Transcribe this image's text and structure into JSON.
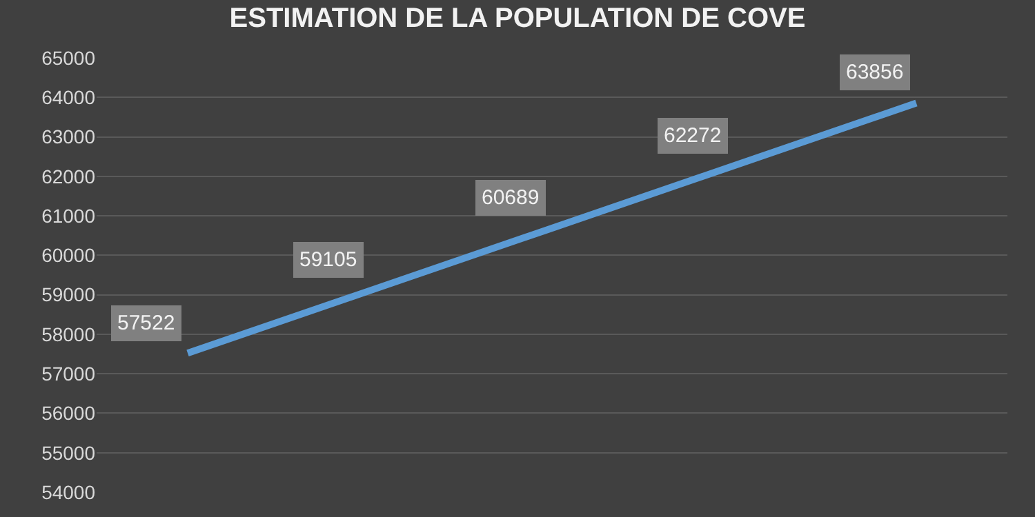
{
  "chart_data": {
    "type": "line",
    "title": "ESTIMATION DE LA POPULATION DE COVE",
    "categories": [
      null,
      null,
      null,
      null,
      null
    ],
    "series": [
      {
        "color": "#5b9bd5",
        "values": [
          57522,
          59105,
          60689,
          62272,
          63856
        ]
      }
    ],
    "ylim": [
      54000,
      65000
    ],
    "yticks": [
      54000,
      55000,
      56000,
      57000,
      58000,
      59000,
      60000,
      61000,
      62000,
      63000,
      64000,
      65000
    ],
    "grid": "y",
    "marker": "none",
    "line_style": "solid",
    "data_labels": true,
    "tick_labels": "y"
  }
}
